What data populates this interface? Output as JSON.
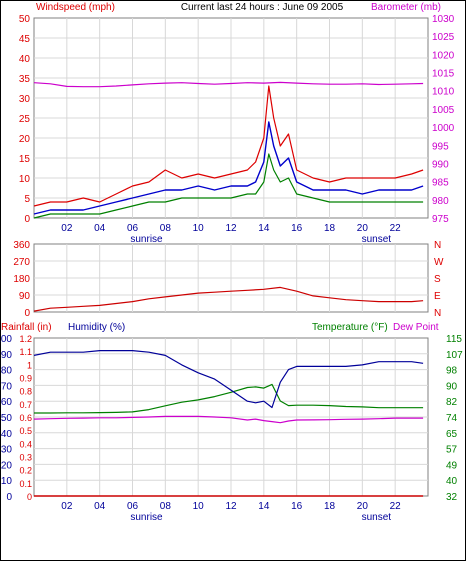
{
  "header": {
    "left_title": "Windspeed (mph)",
    "center_title": "Current last 24 hours : June 09 2005",
    "right_title": "Barometer (mb)"
  },
  "colors": {
    "wind_avg": "#0000cc",
    "wind_gust": "#dd0000",
    "wind_low": "#008000",
    "barometer": "#cc00cc",
    "direction": "#cc0000",
    "humidity": "#000099",
    "temperature": "#008000",
    "dewpoint": "#cc00cc",
    "rainfall": "#cc0000",
    "frame": "#808080",
    "grid": "#d8d8d8"
  },
  "chart_data": [
    {
      "type": "line",
      "id": "wind",
      "xlabel": "",
      "x_ticks": [
        "02",
        "04",
        "06",
        "08",
        "10",
        "12",
        "14",
        "16",
        "18",
        "20",
        "22"
      ],
      "x_markers": [
        {
          "label": "sunrise",
          "hour": 6.0
        },
        {
          "label": "sunset",
          "hour": 20.0
        }
      ],
      "xlim": [
        0,
        24
      ],
      "ylim_left": [
        0,
        50
      ],
      "y_ticks_left": [
        "0",
        "5",
        "10",
        "15",
        "20",
        "25",
        "30",
        "35",
        "40",
        "45",
        "50"
      ],
      "ylim_right": [
        975,
        1030
      ],
      "y_ticks_right": [
        "975",
        "980",
        "985",
        "990",
        "995",
        "1000",
        "1005",
        "1010",
        "1015",
        "1020",
        "1025",
        "1030"
      ],
      "series": [
        {
          "key": "barometer",
          "axis": "right",
          "x": [
            0,
            1,
            2,
            3,
            4,
            5,
            6,
            7,
            8,
            9,
            10,
            11,
            12,
            13,
            14,
            15,
            16,
            17,
            18,
            19,
            20,
            21,
            22,
            23,
            23.7
          ],
          "values": [
            1012.2,
            1011.9,
            1011.2,
            1011.1,
            1011.1,
            1011.3,
            1011.6,
            1011.9,
            1012.1,
            1012.2,
            1012.0,
            1011.8,
            1012.0,
            1012.2,
            1012.1,
            1012.3,
            1012.1,
            1011.9,
            1011.8,
            1011.8,
            1011.9,
            1011.7,
            1011.8,
            1011.9,
            1012.0
          ]
        },
        {
          "key": "wind_gust",
          "axis": "left",
          "x": [
            0,
            1,
            2,
            3,
            4,
            5,
            6,
            7,
            8,
            9,
            10,
            11,
            12,
            13,
            13.5,
            14,
            14.3,
            14.6,
            15,
            15.5,
            16,
            17,
            18,
            19,
            20,
            21,
            22,
            23,
            23.7
          ],
          "values": [
            3,
            4,
            4,
            5,
            4,
            6,
            8,
            9,
            12,
            10,
            11,
            10,
            11,
            12,
            14,
            20,
            33,
            25,
            18,
            21,
            12,
            10,
            9,
            10,
            10,
            10,
            10,
            11,
            12
          ]
        },
        {
          "key": "wind_avg",
          "axis": "left",
          "x": [
            0,
            1,
            2,
            3,
            4,
            5,
            6,
            7,
            8,
            9,
            10,
            11,
            12,
            13,
            13.5,
            14,
            14.3,
            14.6,
            15,
            15.5,
            16,
            17,
            18,
            19,
            20,
            21,
            22,
            23,
            23.7
          ],
          "values": [
            1,
            2,
            2,
            2,
            3,
            4,
            5,
            6,
            7,
            7,
            8,
            7,
            8,
            8,
            9,
            14,
            24,
            18,
            13,
            15,
            9,
            7,
            7,
            7,
            6,
            7,
            7,
            7,
            8
          ]
        },
        {
          "key": "wind_low",
          "axis": "left",
          "x": [
            0,
            1,
            2,
            3,
            4,
            5,
            6,
            7,
            8,
            9,
            10,
            11,
            12,
            13,
            13.5,
            14,
            14.3,
            14.6,
            15,
            15.5,
            16,
            17,
            18,
            19,
            20,
            21,
            22,
            23,
            23.7
          ],
          "values": [
            0,
            1,
            1,
            1,
            1,
            2,
            3,
            4,
            4,
            5,
            5,
            5,
            5,
            6,
            6,
            9,
            16,
            12,
            9,
            10,
            6,
            5,
            4,
            4,
            4,
            4,
            4,
            4,
            4
          ]
        }
      ]
    },
    {
      "type": "line",
      "id": "direction",
      "xlim": [
        0,
        24
      ],
      "ylim_left": [
        0,
        360
      ],
      "y_ticks_left": [
        "0",
        "90",
        "180",
        "270",
        "360"
      ],
      "y_ticks_right": [
        "N",
        "E",
        "S",
        "W",
        "N"
      ],
      "series": [
        {
          "key": "direction",
          "axis": "left",
          "x": [
            0,
            1,
            2,
            3,
            4,
            5,
            6,
            7,
            8,
            9,
            10,
            11,
            12,
            13,
            14,
            15,
            16,
            17,
            18,
            19,
            20,
            21,
            22,
            23,
            23.7
          ],
          "values": [
            5,
            20,
            25,
            30,
            35,
            45,
            55,
            70,
            80,
            90,
            100,
            105,
            110,
            115,
            120,
            130,
            110,
            85,
            75,
            65,
            60,
            55,
            55,
            55,
            60
          ]
        }
      ]
    },
    {
      "type": "line",
      "id": "humidity_temp",
      "left_axis_labels": [
        "Rainfall (in)",
        "Humidity (%)"
      ],
      "right_axis_labels": [
        "Temperature (°F)",
        "Dew Point"
      ],
      "ylim_humidity": [
        0,
        100
      ],
      "y_ticks_humidity": [
        "0",
        "10",
        "20",
        "30",
        "40",
        "50",
        "60",
        "70",
        "80",
        "90",
        "100"
      ],
      "ylim_rainfall": [
        0,
        1.2
      ],
      "y_ticks_rainfall": [
        "0",
        "0.1",
        "0.2",
        "0.3",
        "0.4",
        "0.5",
        "0.6",
        "0.7",
        "0.8",
        "0.9",
        "1",
        "1.1",
        "1.2"
      ],
      "ylim_temperature": [
        32,
        115
      ],
      "y_ticks_temperature": [
        "32",
        "40",
        "49",
        "57",
        "65",
        "74",
        "82",
        "90",
        "98",
        "107",
        "115"
      ],
      "series": [
        {
          "key": "humidity",
          "axis": "humidity",
          "x": [
            0,
            1,
            2,
            3,
            4,
            5,
            6,
            7,
            8,
            9,
            10,
            11,
            12,
            13,
            13.5,
            14,
            14.5,
            15,
            15.5,
            16,
            17,
            18,
            19,
            20,
            21,
            22,
            23,
            23.7
          ],
          "values": [
            89,
            91,
            91,
            91,
            92,
            92,
            92,
            91,
            89,
            83,
            78,
            74,
            67,
            60,
            59,
            60,
            56,
            72,
            80,
            82,
            82,
            82,
            82,
            83,
            85,
            85,
            85,
            84
          ]
        },
        {
          "key": "temperature",
          "axis": "temperature",
          "x": [
            0,
            1,
            2,
            3,
            4,
            5,
            6,
            7,
            8,
            9,
            10,
            11,
            12,
            13,
            13.5,
            14,
            14.5,
            15,
            15.5,
            16,
            17,
            18,
            19,
            20,
            21,
            22,
            23,
            23.7
          ],
          "values": [
            75.6,
            75.6,
            75.7,
            75.7,
            75.8,
            75.9,
            76.2,
            77.4,
            79.4,
            81.3,
            82.5,
            84.2,
            86.5,
            89.0,
            89.3,
            88.7,
            90.6,
            81.9,
            79.5,
            79.7,
            79.7,
            79.5,
            79.0,
            78.8,
            78.4,
            78.4,
            78.4,
            78.4
          ]
        },
        {
          "key": "dewpoint",
          "axis": "temperature",
          "x": [
            0,
            1,
            2,
            3,
            4,
            5,
            6,
            7,
            8,
            9,
            10,
            11,
            12,
            13,
            13.5,
            14,
            14.5,
            15,
            15.5,
            16,
            17,
            18,
            19,
            20,
            21,
            22,
            23,
            23.7
          ],
          "values": [
            72.4,
            72.6,
            72.8,
            72.9,
            73.1,
            73.1,
            73.3,
            73.5,
            73.8,
            73.8,
            73.8,
            73.5,
            73.1,
            71.9,
            72.4,
            71.6,
            71.1,
            70.5,
            71.4,
            71.9,
            72.0,
            72.1,
            72.3,
            72.4,
            72.6,
            72.9,
            72.9,
            72.9
          ]
        },
        {
          "key": "rainfall",
          "axis": "rainfall",
          "x": [
            0,
            23.7
          ],
          "values": [
            0,
            0
          ]
        }
      ]
    }
  ]
}
